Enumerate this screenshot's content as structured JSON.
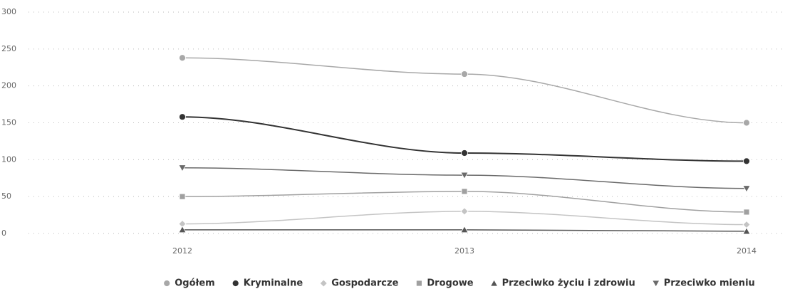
{
  "chart_data": {
    "type": "line",
    "categories": [
      "2012",
      "2013",
      "2014"
    ],
    "series": [
      {
        "name": "Ogółem",
        "color": "#a8a8a8",
        "marker": "circle",
        "values": [
          238,
          216,
          150
        ]
      },
      {
        "name": "Kryminalne",
        "color": "#333333",
        "marker": "circle",
        "values": [
          158,
          109,
          98
        ]
      },
      {
        "name": "Gospodarcze",
        "color": "#c4c4c4",
        "marker": "diamond",
        "values": [
          13,
          30,
          12
        ]
      },
      {
        "name": "Drogowe",
        "color": "#a0a0a0",
        "marker": "square",
        "values": [
          50,
          57,
          29
        ]
      },
      {
        "name": "Przeciwko życiu i zdrowiu",
        "color": "#555555",
        "marker": "triangle",
        "values": [
          5,
          5,
          3
        ]
      },
      {
        "name": "Przeciwko mieniu",
        "color": "#6a6a6a",
        "marker": "triangle-down",
        "values": [
          89,
          79,
          61
        ]
      }
    ],
    "ylim": [
      0,
      300
    ],
    "yticks": [
      0,
      50,
      100,
      150,
      200,
      250,
      300
    ],
    "grid": true,
    "legend": "bottom"
  }
}
